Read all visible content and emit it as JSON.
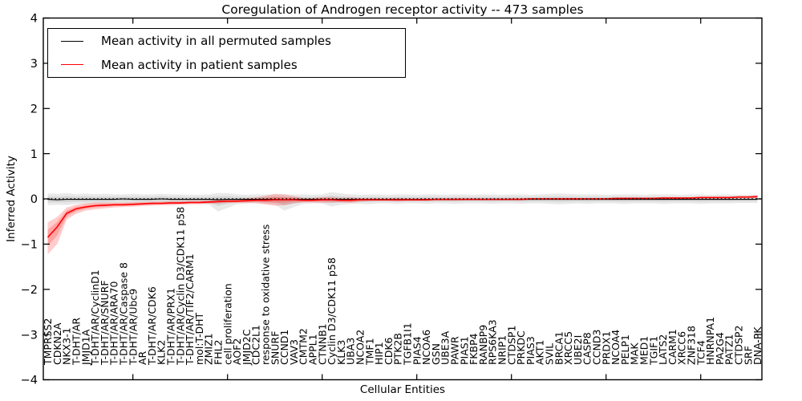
{
  "figure": {
    "title": "Coregulation of Androgen receptor activity -- 473 samples",
    "xlabel": "Cellular Entities",
    "ylabel": "Inferred Activity",
    "legend": [
      {
        "label": "Mean activity in all permuted samples",
        "color": "#000000"
      },
      {
        "label": "Mean activity in patient samples",
        "color": "#ff0000"
      }
    ]
  },
  "chart_data": {
    "type": "line",
    "title": "Coregulation of Androgen receptor activity -- 473 samples",
    "xlabel": "Cellular Entities",
    "ylabel": "Inferred Activity",
    "ylim": [
      -4,
      4
    ],
    "grid": false,
    "legend_position": "upper left",
    "y_ticks": [
      {
        "value": 4,
        "label": "4"
      },
      {
        "value": 3,
        "label": "3"
      },
      {
        "value": 2,
        "label": "2"
      },
      {
        "value": 1,
        "label": "1"
      },
      {
        "value": 0,
        "label": "0"
      },
      {
        "value": -1,
        "label": "−1"
      },
      {
        "value": -2,
        "label": "−2"
      },
      {
        "value": -3,
        "label": "−3"
      },
      {
        "value": -4,
        "label": "−4"
      }
    ],
    "x_major_tick_indices": [
      9,
      19,
      29,
      39,
      49,
      59,
      69
    ],
    "zero_reference_line": {
      "style": "dotted",
      "color": "#000000",
      "y": 0
    },
    "categories": [
      "TMPRSS2",
      "CDKN2A",
      "NKX3-1",
      "T-DHT/AR",
      "JMJD1A",
      "T-DHT/AR/CyclinD1",
      "T-DHT/AR/SNURF",
      "T-DHT/AR/ARA70",
      "T-DHT/AR/Caspase 8",
      "T-DHT/AR/Ubc9",
      "AR",
      "T-DHT/AR/CDK6",
      "KLK2",
      "T-DHT/AR/PRX1",
      "T-DHT/AR/Cyclin D3/CDK11 p58",
      "T-DHT/AR/TIF2/CARM1",
      "mol:T-DHT",
      "ZMIZ1",
      "FHL2",
      "cell proliferation",
      "AOF2",
      "JMJD2C",
      "CDC2L1",
      "response to oxidative stress",
      "SNURF",
      "CCND1",
      "VAV3",
      "CMTM2",
      "APPL1",
      "CTNNB1",
      "Cyclin D3/CDK11 p58",
      "KLK3",
      "UBA3",
      "NCOA2",
      "TMF1",
      "HIP1",
      "CDK6",
      "PTK2B",
      "TGFB1I1",
      "PIAS4",
      "NCOA6",
      "GSN",
      "UBE3A",
      "PAWR",
      "PIAS1",
      "FKBP4",
      "RANBP9",
      "RPS6KA3",
      "NRIP1",
      "CTDSP1",
      "PRKDC",
      "PIAS3",
      "AKT1",
      "SVIL",
      "BRCA1",
      "XRCC5",
      "UBE2I",
      "CASP8",
      "CCND3",
      "PRDX1",
      "NCOA4",
      "PELP1",
      "MAK",
      "MED1",
      "TGIF1",
      "LATS2",
      "CARM1",
      "XRCC6",
      "ZNF318",
      "TCF4",
      "HNRNPA1",
      "PA2G4",
      "PATZ1",
      "CTDSP2",
      "SRF",
      "DNA-PK"
    ],
    "series": [
      {
        "name": "Mean activity in all permuted samples",
        "color": "#000000",
        "band_color": "rgba(40,40,40,0.10)",
        "mean": [
          -0.01,
          -0.02,
          -0.01,
          -0.01,
          -0.01,
          -0.01,
          -0.01,
          -0.01,
          0.0,
          -0.01,
          -0.01,
          -0.01,
          0.0,
          -0.01,
          -0.01,
          -0.01,
          -0.01,
          -0.01,
          -0.02,
          -0.01,
          -0.01,
          -0.01,
          -0.01,
          -0.01,
          -0.01,
          -0.02,
          -0.01,
          -0.01,
          -0.01,
          -0.01,
          -0.01,
          -0.01,
          -0.01,
          -0.01,
          -0.01,
          -0.01,
          -0.01,
          -0.01,
          -0.01,
          -0.01,
          -0.01,
          -0.01,
          -0.01,
          -0.01,
          -0.01,
          -0.01,
          -0.01,
          -0.01,
          -0.01,
          -0.01,
          -0.01,
          -0.01,
          -0.01,
          -0.01,
          -0.01,
          -0.01,
          -0.01,
          -0.01,
          -0.01,
          -0.01,
          -0.01,
          -0.01,
          -0.01,
          -0.01,
          -0.01,
          -0.01,
          -0.01,
          -0.01,
          -0.01,
          -0.01,
          -0.01,
          -0.01,
          -0.01,
          -0.01,
          -0.01,
          -0.01
        ],
        "upper": [
          0.12,
          0.11,
          0.13,
          0.1,
          0.12,
          0.1,
          0.11,
          0.1,
          0.1,
          0.11,
          0.1,
          0.1,
          0.11,
          0.1,
          0.1,
          0.09,
          0.09,
          0.1,
          0.13,
          0.13,
          0.1,
          0.09,
          0.1,
          0.1,
          0.1,
          0.1,
          0.1,
          0.1,
          0.09,
          0.1,
          0.15,
          0.12,
          0.1,
          0.09,
          0.1,
          0.1,
          0.09,
          0.1,
          0.1,
          0.09,
          0.1,
          0.1,
          0.09,
          0.1,
          0.1,
          0.09,
          0.1,
          0.1,
          0.09,
          0.1,
          0.1,
          0.09,
          0.1,
          0.11,
          0.12,
          0.11,
          0.1,
          0.1,
          0.1,
          0.09,
          0.1,
          0.1,
          0.1,
          0.09,
          0.1,
          0.1,
          0.1,
          0.09,
          0.1,
          0.1,
          0.09,
          0.1,
          0.1,
          0.09,
          0.09,
          0.08
        ],
        "lower": [
          -0.14,
          -0.13,
          -0.14,
          -0.11,
          -0.12,
          -0.11,
          -0.12,
          -0.1,
          -0.11,
          -0.1,
          -0.11,
          -0.1,
          -0.11,
          -0.1,
          -0.11,
          -0.1,
          -0.1,
          -0.12,
          -0.28,
          -0.2,
          -0.12,
          -0.1,
          -0.1,
          -0.11,
          -0.12,
          -0.26,
          -0.18,
          -0.11,
          -0.1,
          -0.1,
          -0.17,
          -0.13,
          -0.11,
          -0.11,
          -0.12,
          -0.1,
          -0.1,
          -0.11,
          -0.1,
          -0.1,
          -0.11,
          -0.1,
          -0.1,
          -0.11,
          -0.1,
          -0.1,
          -0.1,
          -0.11,
          -0.1,
          -0.1,
          -0.11,
          -0.1,
          -0.1,
          -0.11,
          -0.12,
          -0.11,
          -0.1,
          -0.11,
          -0.1,
          -0.1,
          -0.1,
          -0.11,
          -0.1,
          -0.1,
          -0.1,
          -0.11,
          -0.1,
          -0.1,
          -0.1,
          -0.11,
          -0.1,
          -0.1,
          -0.1,
          -0.09,
          -0.09,
          -0.09
        ]
      },
      {
        "name": "Mean activity in patient samples",
        "color": "#ff0000",
        "band_color": "rgba(255,0,0,0.20)",
        "mean": [
          -0.85,
          -0.62,
          -0.32,
          -0.22,
          -0.18,
          -0.15,
          -0.14,
          -0.13,
          -0.13,
          -0.12,
          -0.11,
          -0.1,
          -0.1,
          -0.09,
          -0.09,
          -0.08,
          -0.08,
          -0.07,
          -0.06,
          -0.05,
          -0.05,
          -0.04,
          -0.03,
          -0.03,
          -0.02,
          -0.02,
          -0.02,
          -0.03,
          -0.03,
          -0.02,
          -0.02,
          -0.03,
          -0.03,
          -0.02,
          -0.02,
          -0.02,
          -0.02,
          -0.02,
          -0.02,
          -0.02,
          -0.02,
          -0.01,
          -0.01,
          -0.01,
          -0.01,
          -0.01,
          -0.01,
          -0.01,
          -0.01,
          -0.01,
          -0.01,
          0.0,
          0.0,
          0.0,
          0.0,
          0.0,
          0.0,
          0.0,
          0.0,
          0.0,
          0.01,
          0.01,
          0.01,
          0.01,
          0.01,
          0.02,
          0.02,
          0.02,
          0.02,
          0.03,
          0.03,
          0.03,
          0.03,
          0.04,
          0.04,
          0.05
        ],
        "upper": [
          -0.52,
          -0.4,
          -0.19,
          -0.13,
          -0.1,
          -0.08,
          -0.08,
          -0.08,
          -0.08,
          -0.07,
          -0.07,
          -0.06,
          -0.06,
          -0.05,
          -0.05,
          -0.04,
          -0.04,
          -0.03,
          -0.02,
          -0.01,
          0.0,
          0.01,
          0.03,
          0.07,
          0.11,
          0.1,
          0.06,
          0.02,
          0.02,
          0.04,
          0.04,
          0.02,
          0.03,
          0.02,
          0.01,
          0.01,
          0.01,
          0.02,
          0.01,
          0.01,
          0.01,
          0.01,
          0.01,
          0.01,
          0.01,
          0.01,
          0.01,
          0.01,
          0.01,
          0.01,
          0.01,
          0.02,
          0.02,
          0.02,
          0.02,
          0.02,
          0.02,
          0.02,
          0.02,
          0.02,
          0.03,
          0.03,
          0.03,
          0.03,
          0.03,
          0.04,
          0.04,
          0.04,
          0.04,
          0.05,
          0.05,
          0.05,
          0.05,
          0.06,
          0.06,
          0.08
        ],
        "lower": [
          -1.23,
          -1.0,
          -0.46,
          -0.33,
          -0.26,
          -0.23,
          -0.21,
          -0.19,
          -0.18,
          -0.17,
          -0.16,
          -0.15,
          -0.14,
          -0.14,
          -0.13,
          -0.12,
          -0.12,
          -0.11,
          -0.1,
          -0.09,
          -0.09,
          -0.09,
          -0.09,
          -0.12,
          -0.15,
          -0.14,
          -0.1,
          -0.08,
          -0.08,
          -0.09,
          -0.08,
          -0.08,
          -0.09,
          -0.07,
          -0.05,
          -0.05,
          -0.05,
          -0.06,
          -0.05,
          -0.05,
          -0.05,
          -0.04,
          -0.04,
          -0.04,
          -0.03,
          -0.03,
          -0.03,
          -0.03,
          -0.03,
          -0.03,
          -0.03,
          -0.02,
          -0.02,
          -0.02,
          -0.02,
          -0.02,
          -0.02,
          -0.02,
          -0.02,
          -0.02,
          -0.01,
          -0.01,
          -0.01,
          -0.01,
          -0.01,
          0.0,
          0.0,
          0.0,
          0.0,
          0.01,
          0.01,
          0.01,
          0.01,
          0.02,
          0.02,
          0.02
        ]
      }
    ]
  }
}
